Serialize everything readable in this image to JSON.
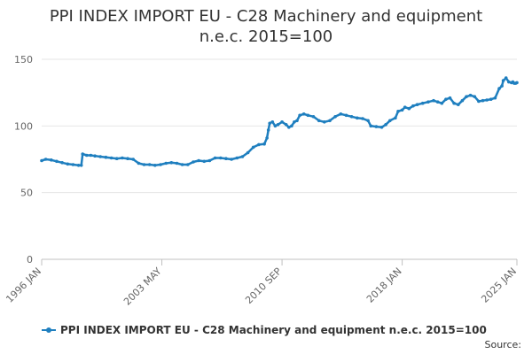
{
  "chart_data": {
    "type": "line",
    "title": "PPI INDEX IMPORT EU - C28 Machinery and equipment n.e.c. 2015=100",
    "title_lines": [
      "PPI INDEX IMPORT EU - C28 Machinery and equipment",
      "n.e.c. 2015=100"
    ],
    "xlabel": "",
    "ylabel": "",
    "ylim": [
      0,
      150
    ],
    "xlim": [
      "1996-01",
      "2025-01"
    ],
    "y_ticks": [
      0,
      50,
      100,
      150
    ],
    "x_tick_labels": [
      {
        "date": "1996-01",
        "label": "1996 JAN"
      },
      {
        "date": "2003-05",
        "label": "2003 MAY"
      },
      {
        "date": "2010-09",
        "label": "2010 SEP"
      },
      {
        "date": "2018-01",
        "label": "2018 JAN"
      },
      {
        "date": "2025-01",
        "label": "2025 JAN"
      }
    ],
    "grid": true,
    "legend_position": "bottom",
    "series_color": "#1f7fbf",
    "source_label": "Source:",
    "series": [
      {
        "name": "PPI INDEX IMPORT EU - C28 Machinery and equipment n.e.c. 2015=100",
        "points": [
          [
            "1996-01",
            74
          ],
          [
            "1996-04",
            75
          ],
          [
            "1996-08",
            74.5
          ],
          [
            "1996-12",
            73.5
          ],
          [
            "1997-04",
            72.5
          ],
          [
            "1997-08",
            71.5
          ],
          [
            "1997-12",
            71
          ],
          [
            "1998-04",
            70.5
          ],
          [
            "1998-06",
            70.5
          ],
          [
            "1998-07",
            79
          ],
          [
            "1998-10",
            78
          ],
          [
            "1999-01",
            78
          ],
          [
            "1999-04",
            77.5
          ],
          [
            "1999-08",
            77
          ],
          [
            "1999-12",
            76.5
          ],
          [
            "2000-04",
            76
          ],
          [
            "2000-08",
            75.5
          ],
          [
            "2000-12",
            76
          ],
          [
            "2001-04",
            75.5
          ],
          [
            "2001-08",
            75
          ],
          [
            "2001-12",
            72
          ],
          [
            "2002-04",
            71
          ],
          [
            "2002-08",
            71
          ],
          [
            "2002-12",
            70.5
          ],
          [
            "2003-04",
            71
          ],
          [
            "2003-08",
            72
          ],
          [
            "2003-12",
            72.5
          ],
          [
            "2004-04",
            72
          ],
          [
            "2004-08",
            71
          ],
          [
            "2004-12",
            71
          ],
          [
            "2005-04",
            73
          ],
          [
            "2005-08",
            74
          ],
          [
            "2005-12",
            73.5
          ],
          [
            "2006-04",
            74
          ],
          [
            "2006-08",
            76
          ],
          [
            "2006-12",
            76
          ],
          [
            "2007-04",
            75.5
          ],
          [
            "2007-08",
            75
          ],
          [
            "2007-12",
            76
          ],
          [
            "2008-04",
            77
          ],
          [
            "2008-08",
            80
          ],
          [
            "2008-12",
            84
          ],
          [
            "2009-04",
            86
          ],
          [
            "2009-08",
            86.5
          ],
          [
            "2009-10",
            91
          ],
          [
            "2009-11",
            97
          ],
          [
            "2009-12",
            102
          ],
          [
            "2010-02",
            103
          ],
          [
            "2010-04",
            100
          ],
          [
            "2010-06",
            101
          ],
          [
            "2010-09",
            103
          ],
          [
            "2010-12",
            101
          ],
          [
            "2011-02",
            99
          ],
          [
            "2011-04",
            100
          ],
          [
            "2011-06",
            103
          ],
          [
            "2011-08",
            104
          ],
          [
            "2011-10",
            108
          ],
          [
            "2012-01",
            109
          ],
          [
            "2012-04",
            108
          ],
          [
            "2012-08",
            107
          ],
          [
            "2012-12",
            104
          ],
          [
            "2013-04",
            103
          ],
          [
            "2013-08",
            104
          ],
          [
            "2013-12",
            107
          ],
          [
            "2014-04",
            109
          ],
          [
            "2014-08",
            108
          ],
          [
            "2014-12",
            107
          ],
          [
            "2015-04",
            106
          ],
          [
            "2015-08",
            105.5
          ],
          [
            "2015-12",
            104
          ],
          [
            "2016-02",
            100
          ],
          [
            "2016-06",
            99.5
          ],
          [
            "2016-10",
            99
          ],
          [
            "2017-01",
            101
          ],
          [
            "2017-04",
            104
          ],
          [
            "2017-08",
            106
          ],
          [
            "2017-10",
            111
          ],
          [
            "2018-01",
            112
          ],
          [
            "2018-03",
            114
          ],
          [
            "2018-06",
            113
          ],
          [
            "2018-09",
            115
          ],
          [
            "2018-12",
            116
          ],
          [
            "2019-04",
            117
          ],
          [
            "2019-08",
            118
          ],
          [
            "2019-12",
            119
          ],
          [
            "2020-03",
            118
          ],
          [
            "2020-06",
            117
          ],
          [
            "2020-09",
            120
          ],
          [
            "2020-12",
            121
          ],
          [
            "2021-03",
            117
          ],
          [
            "2021-06",
            116
          ],
          [
            "2021-09",
            119
          ],
          [
            "2021-12",
            122
          ],
          [
            "2022-03",
            123
          ],
          [
            "2022-06",
            122
          ],
          [
            "2022-09",
            118.5
          ],
          [
            "2022-12",
            119
          ],
          [
            "2023-03",
            119.5
          ],
          [
            "2023-06",
            120
          ],
          [
            "2023-09",
            121
          ],
          [
            "2023-12",
            128
          ],
          [
            "2024-02",
            130
          ],
          [
            "2024-03",
            134
          ],
          [
            "2024-05",
            136
          ],
          [
            "2024-07",
            133
          ],
          [
            "2024-09",
            132.5
          ],
          [
            "2024-10",
            133
          ],
          [
            "2024-11",
            132
          ],
          [
            "2024-12",
            132
          ],
          [
            "2025-01",
            132.5
          ]
        ]
      }
    ]
  }
}
